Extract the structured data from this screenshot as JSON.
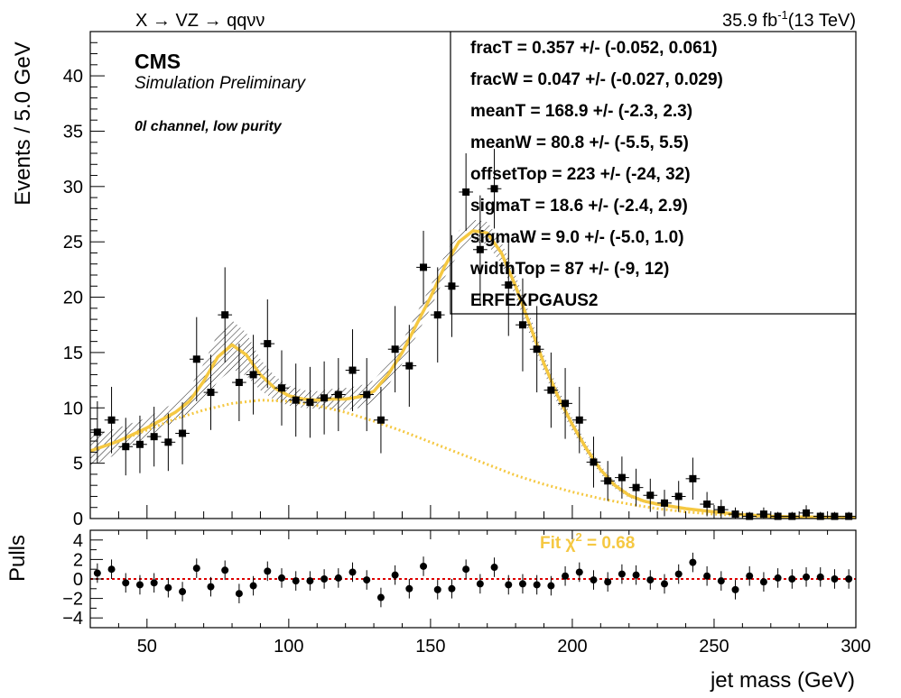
{
  "header": {
    "process": "X → VZ → qqνν",
    "lumi_value": "35.9 fb",
    "lumi_exp": "-1",
    "energy": "(13 TeV)"
  },
  "labels": {
    "cms": "CMS",
    "simulation": "Simulation Preliminary",
    "channel": "0l channel, low purity"
  },
  "fit_box": [
    "fracT =  0.357 +/-  (-0.052, 0.061)",
    "fracW =  0.047 +/-  (-0.027, 0.029)",
    "meanT =  168.9 +/-  (-2.3, 2.3)",
    "meanW =  80.8 +/-  (-5.5, 5.5)",
    "offsetTop =  223 +/-  (-24, 32)",
    "sigmaT =  18.6 +/-  (-2.4, 2.9)",
    "sigmaW =  9.0 +/-  (-5.0, 1.0)",
    "widthTop =  87 +/-  (-9, 12)",
    "ERFEXPGAUS2"
  ],
  "fit_chi2": {
    "prefix": "Fit  χ",
    "exp": "2",
    "suffix": " = 0.68"
  },
  "colors": {
    "fit": "#f5c842",
    "background": "#f5c842",
    "zero_line": "#dd0000",
    "markers": "#000000"
  },
  "chart_data": [
    {
      "type": "scatter",
      "name": "main",
      "xlabel": "",
      "ylabel": "Events / 5.0 GeV",
      "xlim": [
        30,
        300
      ],
      "ylim": [
        0,
        44
      ],
      "x_ticks": [
        50,
        100,
        150,
        200,
        250,
        300
      ],
      "y_ticks": [
        0,
        5,
        10,
        15,
        20,
        25,
        30,
        35,
        40
      ],
      "bin_width": 5,
      "points": [
        {
          "x": 32.5,
          "y": 7.8,
          "err": 2.8
        },
        {
          "x": 37.5,
          "y": 8.9,
          "err": 3.0
        },
        {
          "x": 42.5,
          "y": 6.5,
          "err": 2.6
        },
        {
          "x": 47.5,
          "y": 6.7,
          "err": 2.6
        },
        {
          "x": 52.5,
          "y": 7.4,
          "err": 2.7
        },
        {
          "x": 57.5,
          "y": 6.9,
          "err": 2.6
        },
        {
          "x": 62.5,
          "y": 7.7,
          "err": 2.8
        },
        {
          "x": 67.5,
          "y": 14.4,
          "err": 3.8
        },
        {
          "x": 72.5,
          "y": 11.4,
          "err": 3.4
        },
        {
          "x": 77.5,
          "y": 18.4,
          "err": 4.3
        },
        {
          "x": 82.5,
          "y": 12.3,
          "err": 3.5
        },
        {
          "x": 87.5,
          "y": 13.0,
          "err": 3.6
        },
        {
          "x": 92.5,
          "y": 15.8,
          "err": 4.0
        },
        {
          "x": 97.5,
          "y": 11.8,
          "err": 3.4
        },
        {
          "x": 102.5,
          "y": 10.7,
          "err": 3.3
        },
        {
          "x": 107.5,
          "y": 10.5,
          "err": 3.2
        },
        {
          "x": 112.5,
          "y": 10.9,
          "err": 3.3
        },
        {
          "x": 117.5,
          "y": 11.2,
          "err": 3.3
        },
        {
          "x": 122.5,
          "y": 13.4,
          "err": 3.7
        },
        {
          "x": 127.5,
          "y": 11.2,
          "err": 3.3
        },
        {
          "x": 132.5,
          "y": 8.9,
          "err": 3.0
        },
        {
          "x": 137.5,
          "y": 15.3,
          "err": 3.9
        },
        {
          "x": 142.5,
          "y": 13.8,
          "err": 3.7
        },
        {
          "x": 147.5,
          "y": 22.7,
          "err": 3.3
        },
        {
          "x": 152.5,
          "y": 18.4,
          "err": 4.3
        },
        {
          "x": 157.5,
          "y": 21.0,
          "err": 4.6
        },
        {
          "x": 162.5,
          "y": 29.5,
          "err": 3.5
        },
        {
          "x": 167.5,
          "y": 24.3,
          "err": 4.9
        },
        {
          "x": 172.5,
          "y": 29.8,
          "err": 3.6
        },
        {
          "x": 177.5,
          "y": 21.1,
          "err": 4.6
        },
        {
          "x": 182.5,
          "y": 17.5,
          "err": 4.2
        },
        {
          "x": 187.5,
          "y": 15.3,
          "err": 3.9
        },
        {
          "x": 192.5,
          "y": 11.6,
          "err": 3.4
        },
        {
          "x": 197.5,
          "y": 10.4,
          "err": 3.2
        },
        {
          "x": 202.5,
          "y": 8.9,
          "err": 3.0
        },
        {
          "x": 207.5,
          "y": 5.1,
          "err": 2.3
        },
        {
          "x": 212.5,
          "y": 3.4,
          "err": 1.8
        },
        {
          "x": 217.5,
          "y": 3.7,
          "err": 1.9
        },
        {
          "x": 222.5,
          "y": 2.8,
          "err": 1.7
        },
        {
          "x": 227.5,
          "y": 2.1,
          "err": 1.5
        },
        {
          "x": 232.5,
          "y": 1.4,
          "err": 1.2
        },
        {
          "x": 237.5,
          "y": 2.0,
          "err": 1.4
        },
        {
          "x": 242.5,
          "y": 3.6,
          "err": 1.9
        },
        {
          "x": 247.5,
          "y": 1.3,
          "err": 1.1
        },
        {
          "x": 252.5,
          "y": 0.8,
          "err": 0.9
        },
        {
          "x": 257.5,
          "y": 0.4,
          "err": 0.6
        },
        {
          "x": 262.5,
          "y": 0.2,
          "err": 0.4
        },
        {
          "x": 267.5,
          "y": 0.4,
          "err": 0.6
        },
        {
          "x": 272.5,
          "y": 0.2,
          "err": 0.4
        },
        {
          "x": 277.5,
          "y": 0.2,
          "err": 0.4
        },
        {
          "x": 282.5,
          "y": 0.5,
          "err": 0.7
        },
        {
          "x": 287.5,
          "y": 0.2,
          "err": 0.4
        },
        {
          "x": 292.5,
          "y": 0.2,
          "err": 0.4
        },
        {
          "x": 297.5,
          "y": 0.2,
          "err": 0.4
        }
      ],
      "fit_curve": [
        [
          30,
          6.1
        ],
        [
          40,
          7.0
        ],
        [
          50,
          8.2
        ],
        [
          60,
          9.6
        ],
        [
          65,
          10.6
        ],
        [
          70,
          12.4
        ],
        [
          75,
          14.6
        ],
        [
          80,
          15.7
        ],
        [
          85,
          14.8
        ],
        [
          90,
          13.0
        ],
        [
          95,
          11.8
        ],
        [
          100,
          11.1
        ],
        [
          105,
          10.8
        ],
        [
          110,
          10.7
        ],
        [
          115,
          10.8
        ],
        [
          120,
          10.8
        ],
        [
          125,
          11.0
        ],
        [
          130,
          11.5
        ],
        [
          135,
          13.0
        ],
        [
          140,
          15.0
        ],
        [
          145,
          17.5
        ],
        [
          150,
          20.0
        ],
        [
          155,
          22.8
        ],
        [
          160,
          25.0
        ],
        [
          165,
          26.0
        ],
        [
          170,
          25.8
        ],
        [
          175,
          24.0
        ],
        [
          180,
          21.0
        ],
        [
          185,
          17.5
        ],
        [
          190,
          14.0
        ],
        [
          195,
          11.0
        ],
        [
          200,
          8.5
        ],
        [
          205,
          6.3
        ],
        [
          210,
          4.4
        ],
        [
          215,
          3.0
        ],
        [
          220,
          2.1
        ],
        [
          225,
          1.6
        ],
        [
          230,
          1.3
        ],
        [
          240,
          0.9
        ],
        [
          250,
          0.6
        ],
        [
          260,
          0.35
        ],
        [
          270,
          0.2
        ],
        [
          280,
          0.15
        ],
        [
          290,
          0.12
        ],
        [
          300,
          0.1
        ]
      ],
      "fit_band": [
        [
          30,
          4.7,
          7.5
        ],
        [
          40,
          5.9,
          8.2
        ],
        [
          50,
          7.4,
          9.1
        ],
        [
          60,
          8.8,
          10.5
        ],
        [
          65,
          9.4,
          11.8
        ],
        [
          70,
          10.6,
          14.0
        ],
        [
          75,
          12.4,
          16.7
        ],
        [
          80,
          13.5,
          17.9
        ],
        [
          85,
          12.9,
          16.8
        ],
        [
          90,
          11.6,
          14.4
        ],
        [
          95,
          10.7,
          12.9
        ],
        [
          100,
          10.2,
          12.0
        ],
        [
          105,
          10.0,
          11.6
        ],
        [
          110,
          9.9,
          11.5
        ],
        [
          115,
          9.9,
          11.7
        ],
        [
          120,
          9.8,
          11.8
        ],
        [
          125,
          10.0,
          12.0
        ],
        [
          130,
          10.5,
          12.5
        ],
        [
          135,
          12.0,
          14.0
        ],
        [
          140,
          14.0,
          16.0
        ],
        [
          145,
          16.5,
          18.5
        ],
        [
          150,
          19.0,
          21.0
        ],
        [
          155,
          21.8,
          23.8
        ],
        [
          160,
          24.0,
          26.0
        ],
        [
          165,
          25.0,
          27.0
        ],
        [
          170,
          24.8,
          26.8
        ],
        [
          175,
          23.0,
          25.0
        ],
        [
          180,
          20.0,
          22.0
        ],
        [
          185,
          16.6,
          18.4
        ],
        [
          190,
          13.2,
          14.8
        ],
        [
          195,
          10.3,
          11.7
        ],
        [
          200,
          7.9,
          9.1
        ],
        [
          205,
          5.8,
          6.8
        ],
        [
          210,
          4.0,
          4.8
        ],
        [
          215,
          2.7,
          3.3
        ],
        [
          220,
          1.9,
          2.3
        ],
        [
          225,
          1.45,
          1.75
        ],
        [
          230,
          1.15,
          1.45
        ],
        [
          240,
          0.8,
          1.0
        ],
        [
          250,
          0.52,
          0.68
        ],
        [
          260,
          0.3,
          0.4
        ],
        [
          270,
          0.17,
          0.23
        ],
        [
          280,
          0.13,
          0.17
        ],
        [
          290,
          0.1,
          0.14
        ],
        [
          300,
          0.08,
          0.12
        ]
      ],
      "background_curve": [
        [
          30,
          6.1
        ],
        [
          40,
          7.0
        ],
        [
          50,
          8.0
        ],
        [
          60,
          9.0
        ],
        [
          70,
          9.8
        ],
        [
          80,
          10.4
        ],
        [
          90,
          10.7
        ],
        [
          100,
          10.6
        ],
        [
          110,
          10.2
        ],
        [
          120,
          9.6
        ],
        [
          130,
          8.8
        ],
        [
          140,
          7.9
        ],
        [
          150,
          6.9
        ],
        [
          160,
          5.9
        ],
        [
          170,
          4.9
        ],
        [
          180,
          3.9
        ],
        [
          190,
          3.1
        ],
        [
          200,
          2.4
        ],
        [
          210,
          1.8
        ],
        [
          220,
          1.3
        ],
        [
          230,
          0.9
        ],
        [
          240,
          0.6
        ],
        [
          250,
          0.4
        ],
        [
          260,
          0.25
        ],
        [
          270,
          0.15
        ],
        [
          280,
          0.1
        ],
        [
          290,
          0.06
        ],
        [
          300,
          0.04
        ]
      ]
    },
    {
      "type": "scatter",
      "name": "pulls",
      "xlabel": "jet mass (GeV)",
      "ylabel": "Pulls",
      "xlim": [
        30,
        300
      ],
      "ylim": [
        -5,
        5
      ],
      "x_ticks": [
        50,
        100,
        150,
        200,
        250,
        300
      ],
      "y_ticks": [
        -4,
        -2,
        0,
        2,
        4
      ],
      "bin_width": 5,
      "points": [
        {
          "x": 32.5,
          "y": 0.6,
          "err": 1
        },
        {
          "x": 37.5,
          "y": 1.0,
          "err": 1
        },
        {
          "x": 42.5,
          "y": -0.4,
          "err": 1
        },
        {
          "x": 47.5,
          "y": -0.6,
          "err": 1
        },
        {
          "x": 52.5,
          "y": -0.4,
          "err": 1
        },
        {
          "x": 57.5,
          "y": -0.9,
          "err": 1
        },
        {
          "x": 62.5,
          "y": -1.3,
          "err": 1
        },
        {
          "x": 67.5,
          "y": 1.1,
          "err": 1
        },
        {
          "x": 72.5,
          "y": -0.8,
          "err": 1
        },
        {
          "x": 77.5,
          "y": 0.9,
          "err": 1
        },
        {
          "x": 82.5,
          "y": -1.5,
          "err": 1
        },
        {
          "x": 87.5,
          "y": -0.7,
          "err": 1
        },
        {
          "x": 92.5,
          "y": 0.8,
          "err": 1
        },
        {
          "x": 97.5,
          "y": 0.1,
          "err": 1
        },
        {
          "x": 102.5,
          "y": -0.2,
          "err": 1
        },
        {
          "x": 107.5,
          "y": -0.2,
          "err": 1
        },
        {
          "x": 112.5,
          "y": 0.0,
          "err": 1
        },
        {
          "x": 117.5,
          "y": 0.1,
          "err": 1
        },
        {
          "x": 122.5,
          "y": 0.7,
          "err": 1
        },
        {
          "x": 127.5,
          "y": -0.1,
          "err": 1
        },
        {
          "x": 132.5,
          "y": -1.9,
          "err": 1
        },
        {
          "x": 137.5,
          "y": 0.4,
          "err": 1
        },
        {
          "x": 142.5,
          "y": -1.0,
          "err": 1
        },
        {
          "x": 147.5,
          "y": 1.3,
          "err": 1
        },
        {
          "x": 152.5,
          "y": -1.1,
          "err": 1
        },
        {
          "x": 157.5,
          "y": -1.0,
          "err": 1
        },
        {
          "x": 162.5,
          "y": 1.0,
          "err": 1
        },
        {
          "x": 167.5,
          "y": -0.5,
          "err": 1
        },
        {
          "x": 172.5,
          "y": 1.2,
          "err": 1
        },
        {
          "x": 177.5,
          "y": -0.6,
          "err": 1
        },
        {
          "x": 182.5,
          "y": -0.5,
          "err": 1
        },
        {
          "x": 187.5,
          "y": -0.6,
          "err": 1
        },
        {
          "x": 192.5,
          "y": -0.7,
          "err": 1
        },
        {
          "x": 197.5,
          "y": 0.3,
          "err": 1
        },
        {
          "x": 202.5,
          "y": 0.7,
          "err": 1
        },
        {
          "x": 207.5,
          "y": -0.1,
          "err": 1
        },
        {
          "x": 212.5,
          "y": -0.3,
          "err": 1
        },
        {
          "x": 217.5,
          "y": 0.5,
          "err": 1
        },
        {
          "x": 222.5,
          "y": 0.4,
          "err": 1
        },
        {
          "x": 227.5,
          "y": -0.1,
          "err": 1
        },
        {
          "x": 232.5,
          "y": -0.5,
          "err": 1
        },
        {
          "x": 237.5,
          "y": 0.5,
          "err": 1
        },
        {
          "x": 242.5,
          "y": 1.7,
          "err": 1
        },
        {
          "x": 247.5,
          "y": 0.3,
          "err": 1
        },
        {
          "x": 252.5,
          "y": -0.2,
          "err": 1
        },
        {
          "x": 257.5,
          "y": -1.1,
          "err": 1
        },
        {
          "x": 262.5,
          "y": 0.3,
          "err": 1
        },
        {
          "x": 267.5,
          "y": -0.3,
          "err": 1
        },
        {
          "x": 272.5,
          "y": 0.1,
          "err": 1
        },
        {
          "x": 277.5,
          "y": 0.0,
          "err": 1
        },
        {
          "x": 282.5,
          "y": 0.2,
          "err": 1
        },
        {
          "x": 287.5,
          "y": 0.2,
          "err": 1
        },
        {
          "x": 292.5,
          "y": 0.0,
          "err": 1
        },
        {
          "x": 297.5,
          "y": 0.0,
          "err": 1
        }
      ]
    }
  ]
}
